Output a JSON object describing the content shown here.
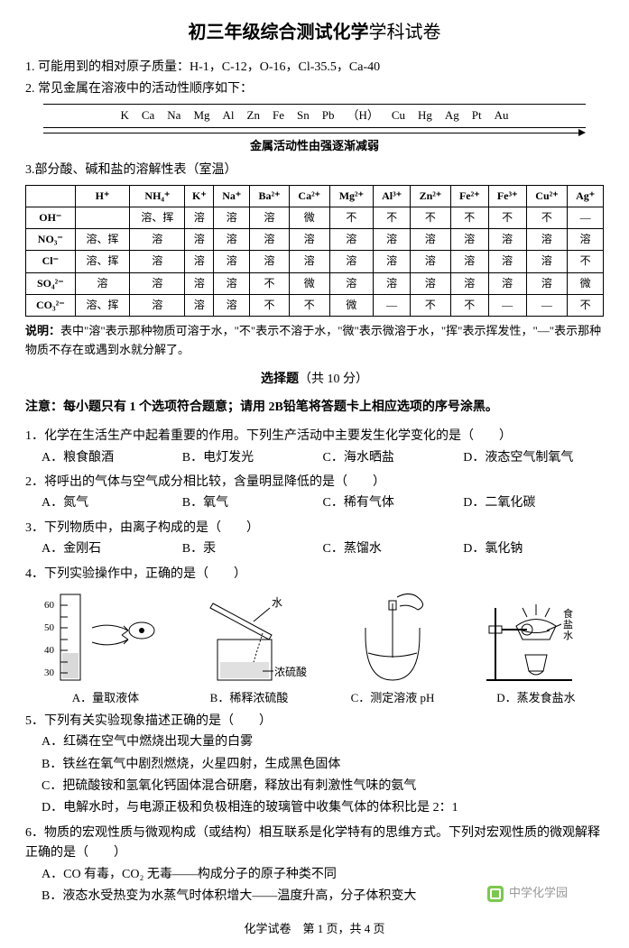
{
  "title_main": "初三年级综合测试化学",
  "title_tail": "学科试卷",
  "intro1": "1. 可能用到的相对原子质量：H-1，C-12，O-16，Cl-35.5，Ca-40",
  "intro2": "2. 常见金属在溶液中的活动性顺序如下：",
  "activity_series": [
    "K",
    "Ca",
    "Na",
    "Mg",
    "Al",
    "Zn",
    "Fe",
    "Sn",
    "Pb",
    "（H）",
    "Cu",
    "Hg",
    "Ag",
    "Pt",
    "Au"
  ],
  "activity_caption": "金属活动性由强逐渐减弱",
  "intro3": "3.部分酸、碱和盐的溶解性表（室温）",
  "sol_table": {
    "cols": [
      "",
      "H⁺",
      "NH₄⁺",
      "K⁺",
      "Na⁺",
      "Ba²⁺",
      "Ca²⁺",
      "Mg²⁺",
      "Al³⁺",
      "Zn²⁺",
      "Fe²⁺",
      "Fe³⁺",
      "Cu²⁺",
      "Ag⁺"
    ],
    "rows": [
      [
        "OH⁻",
        "",
        "溶、挥",
        "溶",
        "溶",
        "溶",
        "微",
        "不",
        "不",
        "不",
        "不",
        "不",
        "不",
        "—"
      ],
      [
        "NO₃⁻",
        "溶、挥",
        "溶",
        "溶",
        "溶",
        "溶",
        "溶",
        "溶",
        "溶",
        "溶",
        "溶",
        "溶",
        "溶",
        "溶"
      ],
      [
        "Cl⁻",
        "溶、挥",
        "溶",
        "溶",
        "溶",
        "溶",
        "溶",
        "溶",
        "溶",
        "溶",
        "溶",
        "溶",
        "溶",
        "不"
      ],
      [
        "SO₄²⁻",
        "溶",
        "溶",
        "溶",
        "溶",
        "不",
        "微",
        "溶",
        "溶",
        "溶",
        "溶",
        "溶",
        "溶",
        "微"
      ],
      [
        "CO₃²⁻",
        "溶、挥",
        "溶",
        "溶",
        "溶",
        "不",
        "不",
        "微",
        "—",
        "不",
        "不",
        "—",
        "—",
        "不"
      ]
    ]
  },
  "note_label": "说明：",
  "note_text": "表中\"溶\"表示那种物质可溶于水，\"不\"表示不溶于水，\"微\"表示微溶于水，\"挥\"表示挥发性，\"—\"表示那种物质不存在或遇到水就分解了。",
  "section_title": "选择题",
  "section_pts": "（共 10 分）",
  "instruction": "注意：每小题只有 1 个选项符合题意；请用 2B铅笔将答题卡上相应选项的序号涂黑。",
  "questions": [
    {
      "num": "1．",
      "stem": "化学在生活生产中起着重要的作用。下列生产活动中主要发生化学变化的是（　　）",
      "opts": [
        "A．粮食酿酒",
        "B．电灯发光",
        "C．海水晒盐",
        "D．液态空气制氧气"
      ],
      "cols": 4
    },
    {
      "num": "2．",
      "stem": "将呼出的气体与空气成分相比较，含量明显降低的是（　　）",
      "opts": [
        "A．氮气",
        "B．氧气",
        "C．稀有气体",
        "D．二氧化碳"
      ],
      "cols": 4
    },
    {
      "num": "3．",
      "stem": "下列物质中，由离子构成的是（　　）",
      "opts": [
        "A．金刚石",
        "B．汞",
        "C．蒸馏水",
        "D．氯化钠"
      ],
      "cols": 4
    },
    {
      "num": "4．",
      "stem": "下列实验操作中，正确的是（　　）",
      "opts": [],
      "cols": 0
    },
    {
      "num": "5．",
      "stem": "下列有关实验现象描述正确的是（　　）",
      "opts": [
        "A．红磷在空气中燃烧出现大量的白雾",
        "B．铁丝在氧气中剧烈燃烧，火星四射，生成黑色固体",
        "C．把硫酸铵和氢氧化钙固体混合研磨，释放出有刺激性气味的氨气",
        "D．电解水时，与电源正极和负极相连的玻璃管中收集气体的体积比是 2：1"
      ],
      "cols": 1
    },
    {
      "num": "6．",
      "stem": "物质的宏观性质与微观构成（或结构）相互联系是化学特有的思维方式。下列对宏观性质的微观解释正确的是（　　）",
      "opts": [
        "A．CO 有毒，CO₂ 无毒——构成分子的原子种类不同",
        "B．液态水受热变为水蒸气时体积增大——温度升高，分子体积变大"
      ],
      "cols": 1
    }
  ],
  "fig_labels": {
    "a": "A．量取液体",
    "b": "B．稀释浓硫酸",
    "c": "C．测定溶液 pH",
    "d": "D．蒸发食盐水",
    "water": "水",
    "conc": "浓硫酸",
    "salt": "食",
    "salt2": "盐",
    "salt3": "水",
    "scale": [
      "60",
      "50",
      "40",
      "30"
    ]
  },
  "footer": "化学试卷　第 1 页，共 4 页",
  "watermark": "中学化学园",
  "colors": {
    "text": "#000000",
    "bg": "#ffffff",
    "wm": "#999999",
    "wm_icon": "#7cc84e"
  }
}
